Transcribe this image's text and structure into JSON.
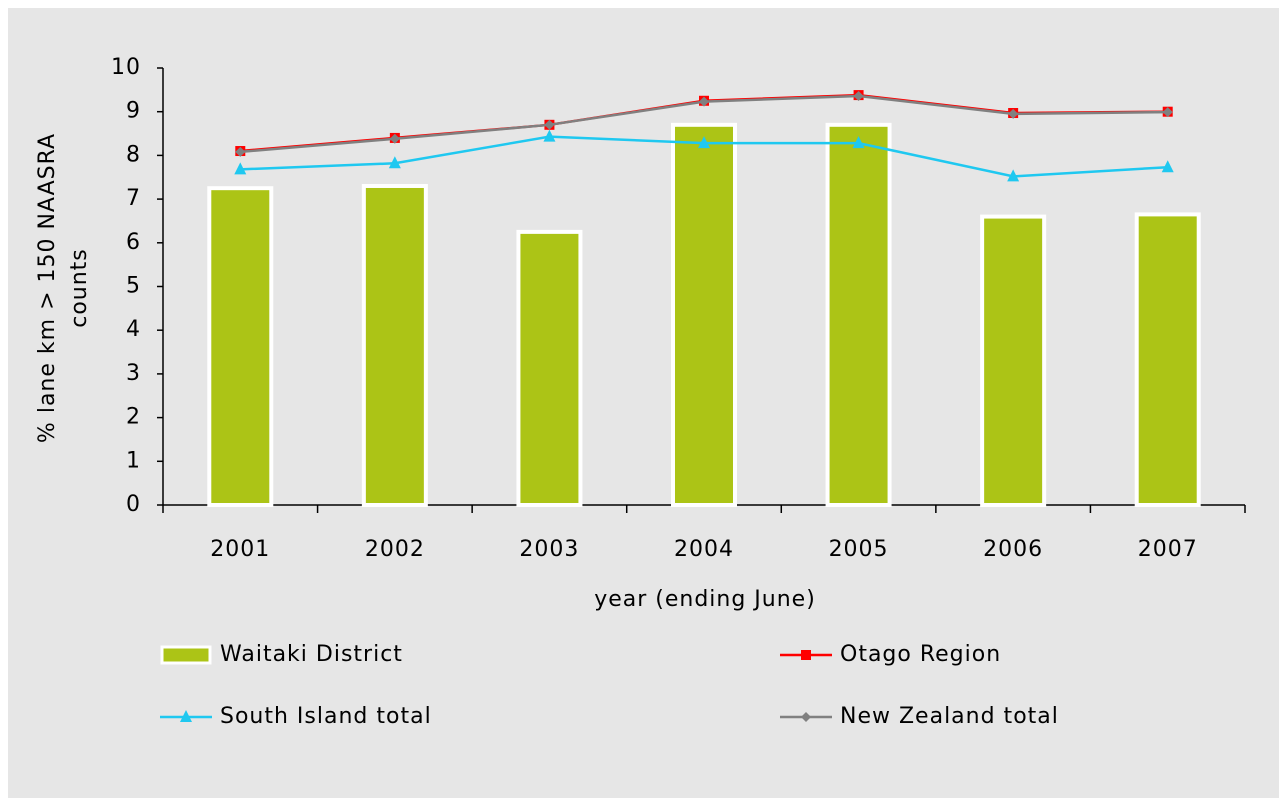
{
  "chart_data": {
    "type": "bar_line",
    "x_label": "year (ending June)",
    "y_label": [
      "% lane km > 150 NAASRA",
      "counts"
    ],
    "categories": [
      "2001",
      "2002",
      "2003",
      "2004",
      "2005",
      "2006",
      "2007"
    ],
    "series": [
      {
        "name": "Waitaki District",
        "type": "bar",
        "color": "#acc416",
        "values": [
          7.25,
          7.3,
          6.25,
          8.7,
          8.7,
          6.6,
          6.65
        ]
      },
      {
        "name": "Otago Region",
        "type": "line",
        "marker": "square",
        "color": "#ff0000",
        "values": [
          8.1,
          8.4,
          8.7,
          9.25,
          9.38,
          8.97,
          9.0
        ]
      },
      {
        "name": "South Island total",
        "type": "line",
        "marker": "triangle",
        "color": "#1fc8f0",
        "values": [
          7.68,
          7.82,
          8.43,
          8.28,
          8.28,
          7.52,
          7.73
        ]
      },
      {
        "name": "New Zealand total",
        "type": "line",
        "marker": "diamond",
        "color": "#808080",
        "values": [
          8.08,
          8.38,
          8.7,
          9.23,
          9.36,
          8.95,
          8.99
        ]
      }
    ],
    "ylim": [
      0,
      10
    ],
    "yticks": [
      0,
      1,
      2,
      3,
      4,
      5,
      6,
      7,
      8,
      9,
      10
    ],
    "grid": false
  }
}
